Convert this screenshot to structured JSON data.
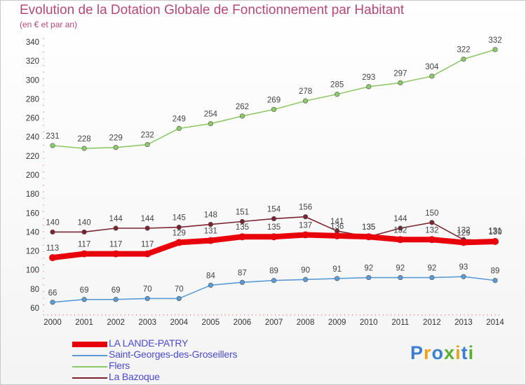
{
  "title": "Evolution de la Dotation Globale de Fonctionnement par Habitant",
  "subtitle": "(en € et par an)",
  "logo": {
    "text": "Proxiti",
    "colors": [
      "#3a7fd0",
      "#e8a21b",
      "#3a7fd0",
      "#5bb030",
      "#e8a21b",
      "#3a7fd0",
      "#5bb030"
    ]
  },
  "chart_data": {
    "type": "line",
    "title": "Evolution de la Dotation Globale de Fonctionnement par Habitant",
    "subtitle": "(en € et par an)",
    "x": [
      2000,
      2001,
      2002,
      2003,
      2004,
      2005,
      2006,
      2007,
      2008,
      2009,
      2010,
      2011,
      2012,
      2013,
      2014
    ],
    "ylim": [
      60,
      340
    ],
    "yticks": [
      60,
      80,
      100,
      120,
      140,
      160,
      180,
      200,
      220,
      240,
      260,
      280,
      300,
      320,
      340
    ],
    "grid": false,
    "legend": "bottom-left",
    "series": [
      {
        "name": "LA LANDE-PATRY",
        "color": "#e8000b",
        "values": [
          113,
          117,
          117,
          117,
          129,
          131,
          135,
          135,
          137,
          136,
          135,
          132,
          132,
          129,
          130
        ]
      },
      {
        "name": "Saint-Georges-des-Groseillers",
        "color": "#5b9bd5",
        "values": [
          66,
          69,
          69,
          70,
          70,
          84,
          87,
          89,
          90,
          91,
          92,
          92,
          92,
          93,
          89
        ]
      },
      {
        "name": "Flers",
        "color": "#8dc968",
        "values": [
          231,
          228,
          229,
          232,
          249,
          254,
          262,
          269,
          278,
          285,
          293,
          297,
          304,
          322,
          332
        ]
      },
      {
        "name": "La Bazoque",
        "color": "#7a2430",
        "values": [
          140,
          140,
          144,
          144,
          145,
          148,
          151,
          154,
          156,
          141,
          135,
          144,
          150,
          132,
          131
        ]
      }
    ]
  }
}
